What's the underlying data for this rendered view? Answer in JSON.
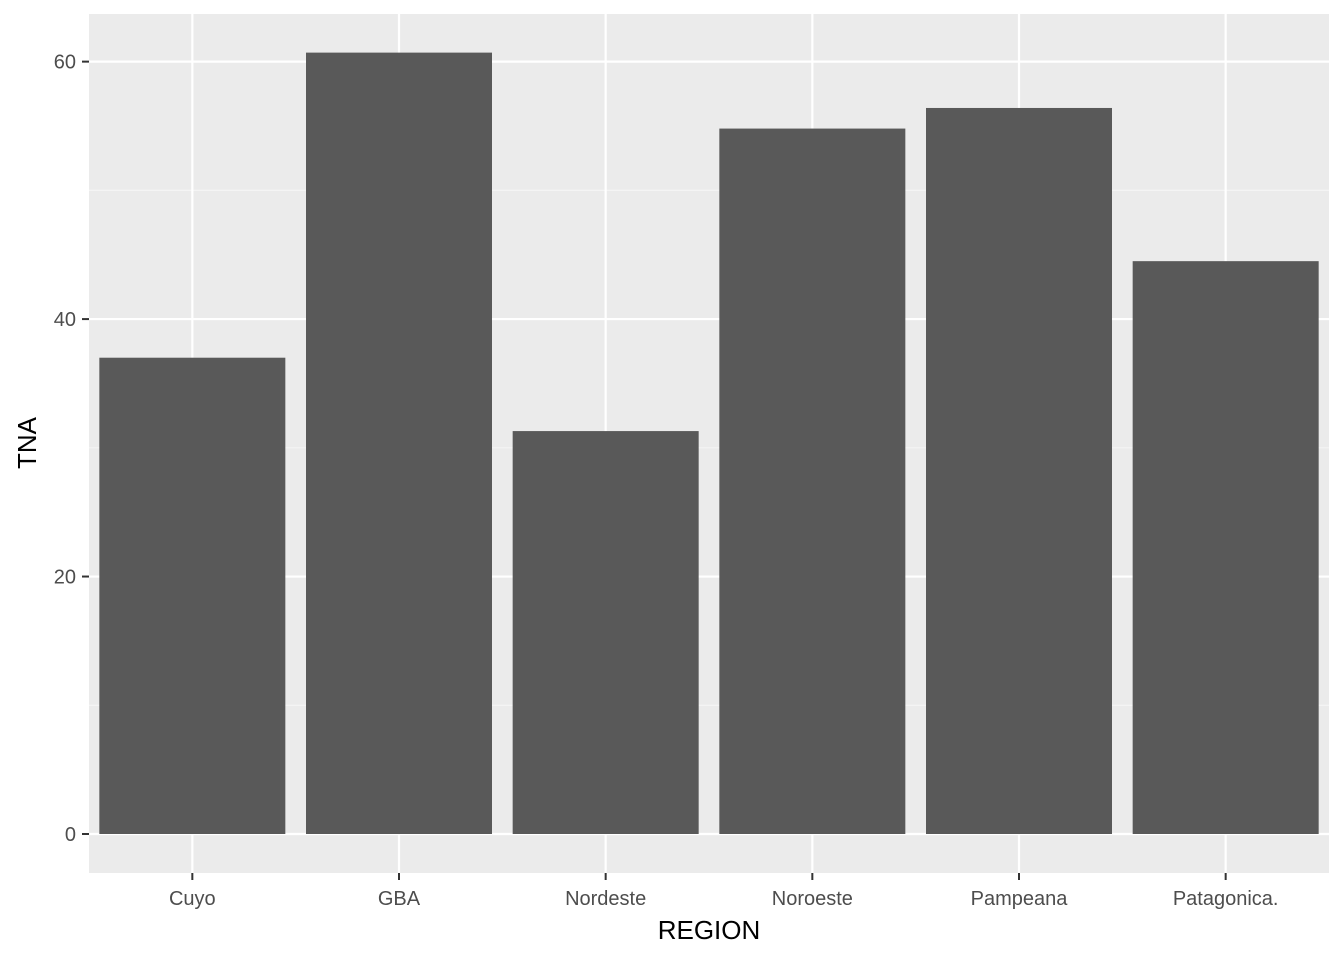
{
  "chart_data": {
    "type": "bar",
    "title": "",
    "xlabel": "REGION",
    "ylabel": "TNA",
    "categories": [
      "Cuyo",
      "GBA",
      "Nordeste",
      "Noroeste",
      "Pampeana",
      "Patagonica."
    ],
    "values": [
      37.0,
      60.7,
      31.3,
      54.8,
      56.4,
      44.5
    ],
    "yticks": [
      0,
      20,
      40,
      60
    ],
    "ylim": [
      -3.03,
      63.7
    ],
    "grid": true,
    "legend": "none",
    "colors": {
      "bar": "#595959",
      "panel": "#ebebeb",
      "grid_major": "#ffffff",
      "grid_minor": "#f5f5f5",
      "tick_text": "#4d4d4d",
      "tick_mark": "#333333"
    }
  }
}
